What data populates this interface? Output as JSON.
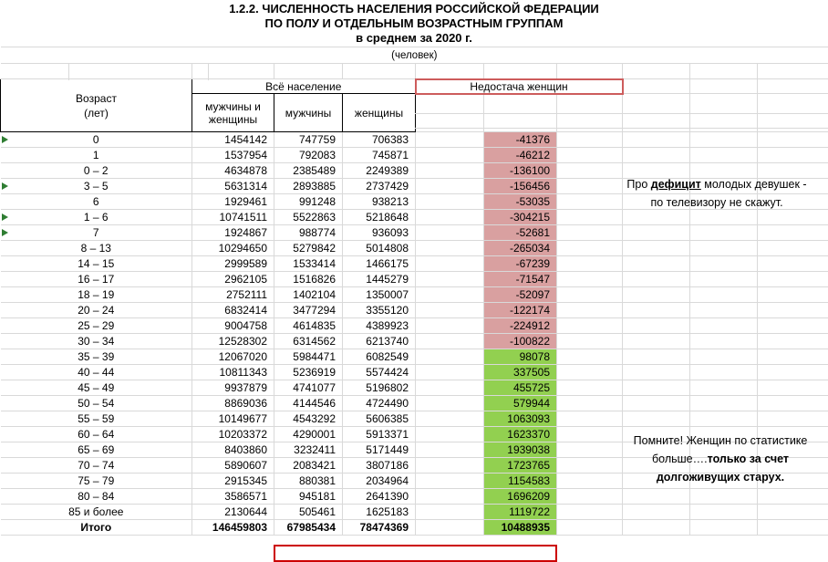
{
  "title": {
    "line1": "1.2.2. ЧИСЛЕННОСТЬ НАСЕЛЕНИЯ РОССИЙСКОЙ ФЕДЕРАЦИИ",
    "line2": "ПО ПОЛУ И ОТДЕЛЬНЫМ ВОЗРАСТНЫМ ГРУППАМ",
    "line3": "в среднем за 2020 г.",
    "unit": "(человек)"
  },
  "table": {
    "age_header_line1": "Возраст",
    "age_header_line2": "(лет)",
    "group_all": "Всё население",
    "group_deficit": "Недостача женщин",
    "col_headers": [
      "мужчины и женщины",
      "мужчины",
      "женщины"
    ],
    "rows": [
      {
        "age": "0",
        "both": "1454142",
        "men": "747759",
        "women": "706383",
        "deficit": "-41376",
        "flag": true
      },
      {
        "age": "1",
        "both": "1537954",
        "men": "792083",
        "women": "745871",
        "deficit": "-46212",
        "flag": false
      },
      {
        "age": "0 – 2",
        "both": "4634878",
        "men": "2385489",
        "women": "2249389",
        "deficit": "-136100",
        "flag": false
      },
      {
        "age": "3 – 5",
        "both": "5631314",
        "men": "2893885",
        "women": "2737429",
        "deficit": "-156456",
        "flag": true
      },
      {
        "age": "6",
        "both": "1929461",
        "men": "991248",
        "women": "938213",
        "deficit": "-53035",
        "flag": false
      },
      {
        "age": "1 – 6",
        "both": "10741511",
        "men": "5522863",
        "women": "5218648",
        "deficit": "-304215",
        "flag": true
      },
      {
        "age": "7",
        "both": "1924867",
        "men": "988774",
        "women": "936093",
        "deficit": "-52681",
        "flag": true
      },
      {
        "age": "8 – 13",
        "both": "10294650",
        "men": "5279842",
        "women": "5014808",
        "deficit": "-265034",
        "flag": false
      },
      {
        "age": "14 – 15",
        "both": "2999589",
        "men": "1533414",
        "women": "1466175",
        "deficit": "-67239",
        "flag": false
      },
      {
        "age": "16 – 17",
        "both": "2962105",
        "men": "1516826",
        "women": "1445279",
        "deficit": "-71547",
        "flag": false
      },
      {
        "age": "18 – 19",
        "both": "2752111",
        "men": "1402104",
        "women": "1350007",
        "deficit": "-52097",
        "flag": false
      },
      {
        "age": "20 – 24",
        "both": "6832414",
        "men": "3477294",
        "women": "3355120",
        "deficit": "-122174",
        "flag": false
      },
      {
        "age": "25 – 29",
        "both": "9004758",
        "men": "4614835",
        "women": "4389923",
        "deficit": "-224912",
        "flag": false
      },
      {
        "age": "30 – 34",
        "both": "12528302",
        "men": "6314562",
        "women": "6213740",
        "deficit": "-100822",
        "flag": false
      },
      {
        "age": "35 – 39",
        "both": "12067020",
        "men": "5984471",
        "women": "6082549",
        "deficit": "98078",
        "flag": false
      },
      {
        "age": "40 – 44",
        "both": "10811343",
        "men": "5236919",
        "women": "5574424",
        "deficit": "337505",
        "flag": false
      },
      {
        "age": "45 – 49",
        "both": "9937879",
        "men": "4741077",
        "women": "5196802",
        "deficit": "455725",
        "flag": false
      },
      {
        "age": "50 – 54",
        "both": "8869036",
        "men": "4144546",
        "women": "4724490",
        "deficit": "579944",
        "flag": false
      },
      {
        "age": "55 – 59",
        "both": "10149677",
        "men": "4543292",
        "women": "5606385",
        "deficit": "1063093",
        "flag": false
      },
      {
        "age": "60 – 64",
        "both": "10203372",
        "men": "4290001",
        "women": "5913371",
        "deficit": "1623370",
        "flag": false
      },
      {
        "age": "65 – 69",
        "both": "8403860",
        "men": "3232411",
        "women": "5171449",
        "deficit": "1939038",
        "flag": false
      },
      {
        "age": "70 – 74",
        "both": "5890607",
        "men": "2083421",
        "women": "3807186",
        "deficit": "1723765",
        "flag": false
      },
      {
        "age": "75 – 79",
        "both": "2915345",
        "men": "880381",
        "women": "2034964",
        "deficit": "1154583",
        "flag": false
      },
      {
        "age": "80 – 84",
        "both": "3586571",
        "men": "945181",
        "women": "2641390",
        "deficit": "1696209",
        "flag": false
      },
      {
        "age": "85 и более",
        "both": "2130644",
        "men": "505461",
        "women": "1625183",
        "deficit": "1119722",
        "flag": false
      }
    ],
    "total": {
      "label": "Итого",
      "both": "146459803",
      "men": "67985434",
      "women": "78474369",
      "deficit": "10488935"
    }
  },
  "notes": {
    "n1": {
      "pre": "Про ",
      "bold": "дефицит",
      "post": " молодых девушек -",
      "line2": "по телевизору не скажут."
    },
    "n2": {
      "line1": "Помните! Женщин по статистике",
      "line2_normal": "больше….",
      "line2_bold": "только за счет",
      "line3_bold": "долгоживущих старух."
    }
  },
  "colors": {
    "deficit_negative": "#d9a0a0",
    "deficit_positive": "#92d050",
    "flag_green": "#2e7d32",
    "box_red": "#cc0000",
    "header_box_red": "#cd5c5c",
    "gridline": "#d9d9d9"
  }
}
